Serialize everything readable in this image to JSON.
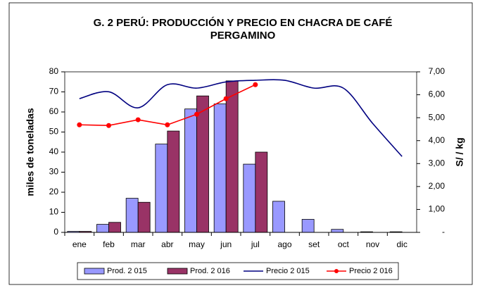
{
  "chart_data": {
    "type": "bar_line",
    "title": [
      "G. 2 PERÚ: PRODUCCIÓN Y PRECIO EN CHACRA DE CAFÉ",
      "PERGAMINO"
    ],
    "ylabel": "miles de toneladas",
    "y2label": "S/ / kg",
    "categories": [
      "ene",
      "feb",
      "mar",
      "abr",
      "may",
      "jun",
      "jul",
      "ago",
      "set",
      "oct",
      "nov",
      "dic"
    ],
    "ylim": [
      0,
      80
    ],
    "yticks": [
      0,
      10,
      20,
      30,
      40,
      50,
      60,
      70,
      80
    ],
    "y2lim": [
      0,
      7
    ],
    "y2ticks": [
      {
        "value": 0,
        "label": "-"
      },
      {
        "value": 1,
        "label": "1,00"
      },
      {
        "value": 2,
        "label": "2,00"
      },
      {
        "value": 3,
        "label": "3,00"
      },
      {
        "value": 4,
        "label": "4,00"
      },
      {
        "value": 5,
        "label": "5,00"
      },
      {
        "value": 6,
        "label": "6,00"
      },
      {
        "value": 7,
        "label": "7,00"
      }
    ],
    "legend": "bottom",
    "series": [
      {
        "name": "Prod. 2 015",
        "type": "bar",
        "color": "#9999ff",
        "values": [
          0.5,
          4,
          17,
          44,
          61.5,
          64,
          34,
          15.5,
          6.5,
          1.5,
          0.3,
          0.3
        ]
      },
      {
        "name": "Prod. 2 016",
        "type": "bar",
        "color": "#993366",
        "values": [
          0.5,
          5,
          15,
          50.5,
          68,
          75.5,
          40,
          null,
          null,
          null,
          null,
          null
        ]
      },
      {
        "name": "Precio 2 015",
        "type": "line",
        "axis": "y2",
        "color": "#000080",
        "smooth": true,
        "values": [
          5.83,
          6.13,
          5.43,
          6.44,
          6.29,
          6.56,
          6.63,
          6.63,
          6.29,
          6.29,
          4.75,
          3.31
        ]
      },
      {
        "name": "Precio 2 016",
        "type": "line",
        "axis": "y2",
        "color": "#ff0000",
        "markers": true,
        "values": [
          4.69,
          4.66,
          4.91,
          4.69,
          5.15,
          5.83,
          6.44,
          null,
          null,
          null,
          null,
          null
        ]
      }
    ]
  }
}
